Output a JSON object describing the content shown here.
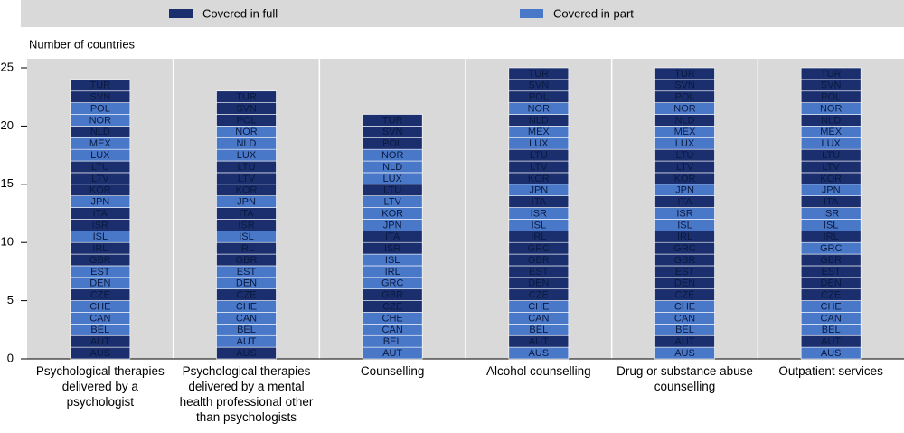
{
  "chart_data": {
    "type": "tile-stack",
    "y_label": "Number of countries",
    "ylim": [
      0,
      25
    ],
    "yticks": [
      0,
      5,
      10,
      15,
      20,
      25
    ],
    "series": [
      {
        "name": "Covered in full",
        "color": "#1b2f6e"
      },
      {
        "name": "Covered in part",
        "color": "#4a78c8"
      }
    ],
    "columns": [
      {
        "label": "Psychological therapies delivered by a psychologist",
        "cells": [
          {
            "label": "AUS",
            "full": true
          },
          {
            "label": "AUT",
            "full": true
          },
          {
            "label": "BEL",
            "full": false
          },
          {
            "label": "CAN",
            "full": false
          },
          {
            "label": "CHE",
            "full": false
          },
          {
            "label": "CZE",
            "full": true
          },
          {
            "label": "DEN",
            "full": false
          },
          {
            "label": "EST",
            "full": false
          },
          {
            "label": "GBR",
            "full": true
          },
          {
            "label": "IRL",
            "full": true
          },
          {
            "label": "ISL",
            "full": false
          },
          {
            "label": "ISR",
            "full": true
          },
          {
            "label": "ITA",
            "full": true
          },
          {
            "label": "JPN",
            "full": false
          },
          {
            "label": "KOR",
            "full": true
          },
          {
            "label": "LTV",
            "full": true
          },
          {
            "label": "LTU",
            "full": true
          },
          {
            "label": "LUX",
            "full": false
          },
          {
            "label": "MEX",
            "full": false
          },
          {
            "label": "NLD",
            "full": true
          },
          {
            "label": "NOR",
            "full": false
          },
          {
            "label": "POL",
            "full": false
          },
          {
            "label": "SVN",
            "full": true
          },
          {
            "label": "TUR",
            "full": true
          }
        ]
      },
      {
        "label": "Psychological therapies delivered by a mental health professional other than psychologists",
        "cells": [
          {
            "label": "AUS",
            "full": true
          },
          {
            "label": "AUT",
            "full": false
          },
          {
            "label": "BEL",
            "full": false
          },
          {
            "label": "CAN",
            "full": false
          },
          {
            "label": "CHE",
            "full": false
          },
          {
            "label": "CZE",
            "full": true
          },
          {
            "label": "DEN",
            "full": false
          },
          {
            "label": "EST",
            "full": false
          },
          {
            "label": "GBR",
            "full": true
          },
          {
            "label": "IRL",
            "full": true
          },
          {
            "label": "ISL",
            "full": false
          },
          {
            "label": "ISR",
            "full": true
          },
          {
            "label": "ITA",
            "full": true
          },
          {
            "label": "JPN",
            "full": false
          },
          {
            "label": "KOR",
            "full": true
          },
          {
            "label": "LTV",
            "full": true
          },
          {
            "label": "LTU",
            "full": true
          },
          {
            "label": "LUX",
            "full": false
          },
          {
            "label": "NLD",
            "full": false
          },
          {
            "label": "NOR",
            "full": false
          },
          {
            "label": "POL",
            "full": true
          },
          {
            "label": "SVN",
            "full": true
          },
          {
            "label": "TUR",
            "full": true
          }
        ]
      },
      {
        "label": "Counselling",
        "cells": [
          {
            "label": "AUT",
            "full": false
          },
          {
            "label": "BEL",
            "full": false
          },
          {
            "label": "CAN",
            "full": false
          },
          {
            "label": "CHE",
            "full": false
          },
          {
            "label": "CZE",
            "full": true
          },
          {
            "label": "GBR",
            "full": true
          },
          {
            "label": "GRC",
            "full": false
          },
          {
            "label": "IRL",
            "full": false
          },
          {
            "label": "ISL",
            "full": false
          },
          {
            "label": "ISR",
            "full": true
          },
          {
            "label": "ITA",
            "full": true
          },
          {
            "label": "JPN",
            "full": false
          },
          {
            "label": "KOR",
            "full": false
          },
          {
            "label": "LTV",
            "full": false
          },
          {
            "label": "LTU",
            "full": true
          },
          {
            "label": "LUX",
            "full": false
          },
          {
            "label": "NLD",
            "full": false
          },
          {
            "label": "NOR",
            "full": false
          },
          {
            "label": "POL",
            "full": true
          },
          {
            "label": "SVN",
            "full": true
          },
          {
            "label": "TUR",
            "full": true
          }
        ]
      },
      {
        "label": "Alcohol counselling",
        "cells": [
          {
            "label": "AUS",
            "full": false
          },
          {
            "label": "AUT",
            "full": true
          },
          {
            "label": "BEL",
            "full": false
          },
          {
            "label": "CAN",
            "full": false
          },
          {
            "label": "CHE",
            "full": false
          },
          {
            "label": "CZE",
            "full": true
          },
          {
            "label": "DEN",
            "full": true
          },
          {
            "label": "EST",
            "full": true
          },
          {
            "label": "GBR",
            "full": true
          },
          {
            "label": "GRC",
            "full": true
          },
          {
            "label": "IRL",
            "full": true
          },
          {
            "label": "ISL",
            "full": false
          },
          {
            "label": "ISR",
            "full": false
          },
          {
            "label": "ITA",
            "full": true
          },
          {
            "label": "JPN",
            "full": false
          },
          {
            "label": "KOR",
            "full": true
          },
          {
            "label": "LTV",
            "full": true
          },
          {
            "label": "LTU",
            "full": true
          },
          {
            "label": "LUX",
            "full": false
          },
          {
            "label": "MEX",
            "full": false
          },
          {
            "label": "NLD",
            "full": true
          },
          {
            "label": "NOR",
            "full": false
          },
          {
            "label": "POL",
            "full": true
          },
          {
            "label": "SVN",
            "full": true
          },
          {
            "label": "TUR",
            "full": true
          }
        ]
      },
      {
        "label": "Drug or substance abuse counselling",
        "cells": [
          {
            "label": "AUS",
            "full": false
          },
          {
            "label": "AUT",
            "full": true
          },
          {
            "label": "BEL",
            "full": false
          },
          {
            "label": "CAN",
            "full": false
          },
          {
            "label": "CHE",
            "full": false
          },
          {
            "label": "CZE",
            "full": true
          },
          {
            "label": "DEN",
            "full": true
          },
          {
            "label": "EST",
            "full": true
          },
          {
            "label": "GBR",
            "full": true
          },
          {
            "label": "GRC",
            "full": true
          },
          {
            "label": "IRL",
            "full": true
          },
          {
            "label": "ISL",
            "full": false
          },
          {
            "label": "ISR",
            "full": false
          },
          {
            "label": "ITA",
            "full": true
          },
          {
            "label": "JPN",
            "full": false
          },
          {
            "label": "KOR",
            "full": true
          },
          {
            "label": "LTV",
            "full": true
          },
          {
            "label": "LTU",
            "full": true
          },
          {
            "label": "LUX",
            "full": false
          },
          {
            "label": "MEX",
            "full": false
          },
          {
            "label": "NLD",
            "full": true
          },
          {
            "label": "NOR",
            "full": false
          },
          {
            "label": "POL",
            "full": true
          },
          {
            "label": "SVN",
            "full": true
          },
          {
            "label": "TUR",
            "full": true
          }
        ]
      },
      {
        "label": "Outpatient services",
        "cells": [
          {
            "label": "AUS",
            "full": false
          },
          {
            "label": "AUT",
            "full": true
          },
          {
            "label": "BEL",
            "full": false
          },
          {
            "label": "CAN",
            "full": false
          },
          {
            "label": "CHE",
            "full": false
          },
          {
            "label": "CZE",
            "full": true
          },
          {
            "label": "DEN",
            "full": true
          },
          {
            "label": "EST",
            "full": true
          },
          {
            "label": "GBR",
            "full": true
          },
          {
            "label": "GRC",
            "full": false
          },
          {
            "label": "IRL",
            "full": true
          },
          {
            "label": "ISL",
            "full": false
          },
          {
            "label": "ISR",
            "full": false
          },
          {
            "label": "ITA",
            "full": true
          },
          {
            "label": "JPN",
            "full": false
          },
          {
            "label": "KOR",
            "full": true
          },
          {
            "label": "LTV",
            "full": true
          },
          {
            "label": "LTU",
            "full": true
          },
          {
            "label": "LUX",
            "full": false
          },
          {
            "label": "MEX",
            "full": false
          },
          {
            "label": "NLD",
            "full": true
          },
          {
            "label": "NOR",
            "full": false
          },
          {
            "label": "POL",
            "full": true
          },
          {
            "label": "SVN",
            "full": true
          },
          {
            "label": "TUR",
            "full": true
          }
        ]
      }
    ]
  }
}
